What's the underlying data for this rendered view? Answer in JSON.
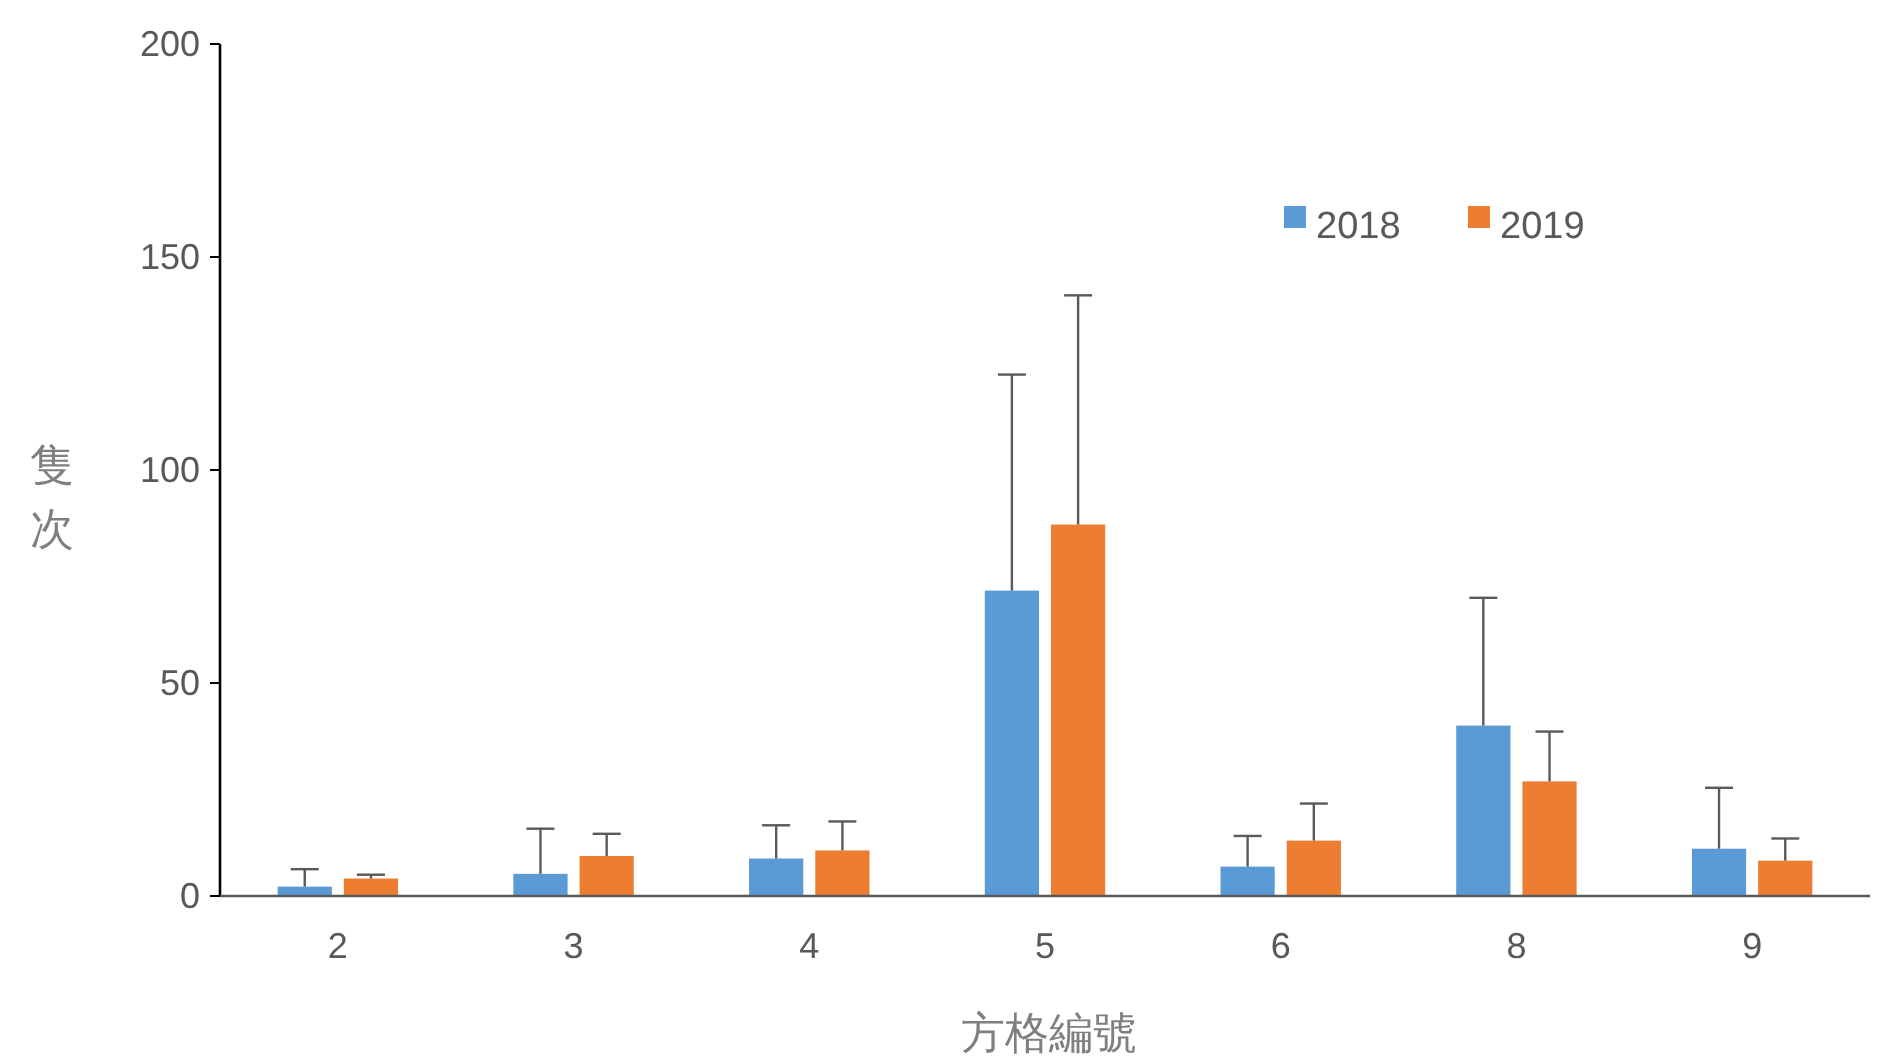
{
  "chart_data": {
    "type": "bar",
    "xlabel": "方格編號",
    "ylabel": "隻次",
    "categories": [
      "2",
      "3",
      "4",
      "5",
      "6",
      "8",
      "9"
    ],
    "series": [
      {
        "name": "2018",
        "color": "#5b9bd5",
        "values": [
          2.2,
          5.2,
          8.8,
          71.7,
          6.9,
          40.0,
          11.1
        ],
        "errors": [
          [
            2.2,
            6.3
          ],
          [
            5.2,
            15.8
          ],
          [
            8.8,
            16.6
          ],
          [
            71.7,
            122.4
          ],
          [
            6.9,
            14.1
          ],
          [
            40.0,
            70.0
          ],
          [
            11.1,
            25.4
          ]
        ]
      },
      {
        "name": "2019",
        "color": "#ed7d31",
        "values": [
          4.1,
          9.4,
          10.7,
          87.2,
          13.0,
          26.9,
          8.3
        ],
        "errors": [
          [
            4.1,
            5.0
          ],
          [
            9.4,
            14.6
          ],
          [
            10.7,
            17.5
          ],
          [
            87.2,
            141
          ],
          [
            13.0,
            21.7
          ],
          [
            26.9,
            38.6
          ],
          [
            8.3,
            13.5
          ]
        ]
      }
    ],
    "ylim": [
      0,
      200
    ],
    "yticks": [
      0,
      50,
      100,
      150,
      200
    ],
    "grid": false,
    "legend": "top right"
  }
}
